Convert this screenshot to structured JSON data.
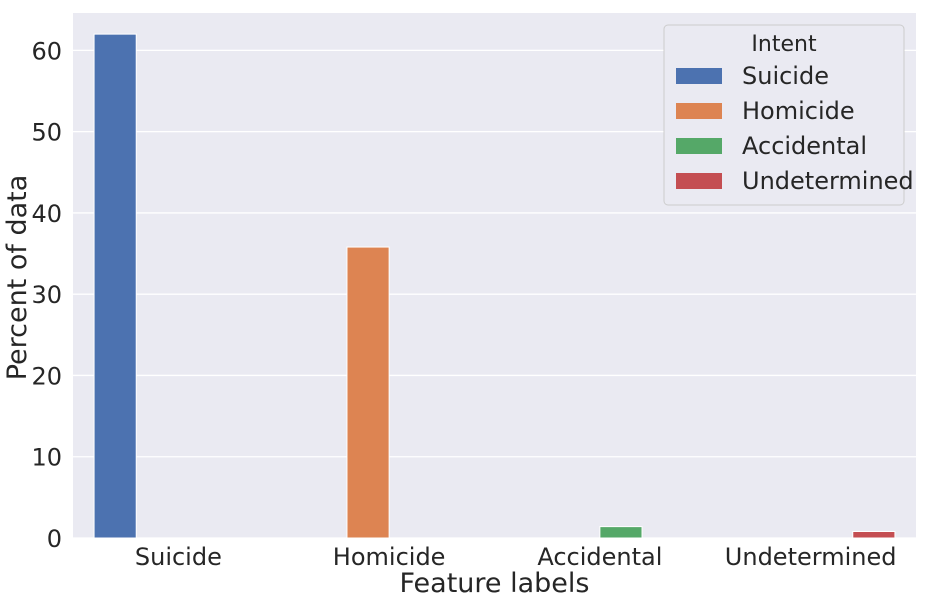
{
  "chart_data": {
    "type": "bar",
    "categories": [
      "Suicide",
      "Homicide",
      "Accidental",
      "Undetermined"
    ],
    "series": [
      {
        "name": "Suicide",
        "color": "#4c72b0",
        "values": [
          62.0,
          0,
          0,
          0
        ]
      },
      {
        "name": "Homicide",
        "color": "#dd8452",
        "values": [
          0,
          35.8,
          0,
          0
        ]
      },
      {
        "name": "Accidental",
        "color": "#55a868",
        "values": [
          0,
          0,
          1.4,
          0
        ]
      },
      {
        "name": "Undetermined",
        "color": "#c44e52",
        "values": [
          0,
          0,
          0,
          0.8
        ]
      }
    ],
    "title": "",
    "xlabel": "Feature labels",
    "ylabel": "Percent of data",
    "ylim": [
      0,
      64.6
    ],
    "yticks": [
      0,
      10,
      20,
      30,
      40,
      50,
      60
    ],
    "grid": true,
    "background": "#eaeaf2",
    "legend": {
      "title": "Intent",
      "position": "top-right"
    }
  }
}
